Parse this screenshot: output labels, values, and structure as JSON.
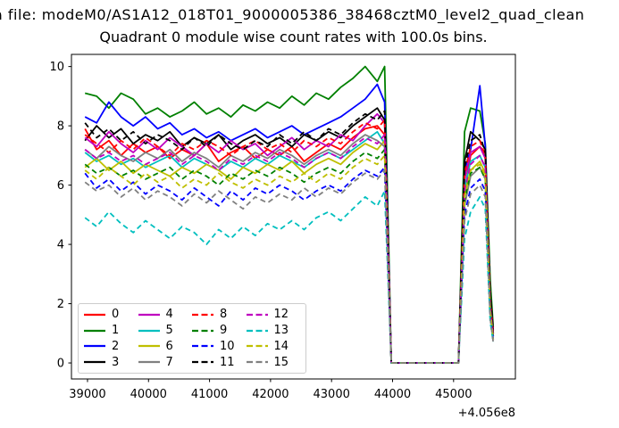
{
  "titles": {
    "line1": "a file: modeM0/AS1A12_018T01_9000005386_38468cztM0_level2_quad_clean",
    "line2": "Quadrant 0 module wise count rates with 100.0s bins."
  },
  "axes": {
    "xticks": [
      39000,
      40000,
      41000,
      42000,
      43000,
      44000,
      45000
    ],
    "yticks": [
      0,
      2,
      4,
      6,
      8,
      10
    ],
    "offset_text": "+4.056e8",
    "xlim": [
      38737,
      46013
    ],
    "ylim": [
      -0.54,
      10.41
    ]
  },
  "chart_data": {
    "type": "line",
    "title": "Quadrant 0 module wise count rates with 100.0s bins.",
    "xlabel": "",
    "ylabel": "",
    "x_offset": "+4.056e8",
    "bin_seconds": 100.0,
    "legend_position": "lower-left",
    "legend_ncol": 4,
    "grid": false,
    "x": [
      38960,
      39150,
      39350,
      39550,
      39750,
      39950,
      40150,
      40350,
      40550,
      40750,
      40950,
      41150,
      41350,
      41550,
      41750,
      41950,
      42150,
      42350,
      42550,
      42750,
      42950,
      43150,
      43350,
      43550,
      43750,
      43870,
      43980,
      44100,
      44300,
      44500,
      44700,
      44900,
      45080,
      45180,
      45280,
      45430,
      45520,
      45600,
      45650
    ],
    "series": [
      {
        "name": "0",
        "color": "#ff0000",
        "dash": false,
        "values": [
          7.9,
          7.2,
          7.5,
          7.0,
          7.4,
          7.1,
          7.3,
          6.9,
          7.2,
          7.0,
          7.4,
          6.8,
          7.1,
          7.3,
          6.9,
          7.2,
          7.0,
          7.3,
          6.8,
          7.1,
          7.4,
          7.2,
          7.6,
          7.9,
          8.0,
          7.7,
          0,
          0,
          0,
          0,
          0,
          0,
          0,
          5.8,
          7.0,
          7.3,
          7.1,
          2.3,
          1.0
        ]
      },
      {
        "name": "1",
        "color": "#008000",
        "dash": false,
        "values": [
          9.1,
          9.0,
          8.6,
          9.1,
          8.9,
          8.4,
          8.6,
          8.3,
          8.5,
          8.8,
          8.4,
          8.6,
          8.3,
          8.7,
          8.5,
          8.8,
          8.6,
          9.0,
          8.7,
          9.1,
          8.9,
          9.3,
          9.6,
          10.0,
          9.5,
          10.0,
          0,
          0,
          0,
          0,
          0,
          0,
          0,
          7.8,
          8.6,
          8.5,
          7.4,
          2.8,
          1.2
        ]
      },
      {
        "name": "2",
        "color": "#0000ff",
        "dash": false,
        "values": [
          8.3,
          8.1,
          8.8,
          8.3,
          8.0,
          8.3,
          7.9,
          8.1,
          7.7,
          7.9,
          7.6,
          7.8,
          7.5,
          7.7,
          7.9,
          7.6,
          7.8,
          8.0,
          7.7,
          7.9,
          8.1,
          8.3,
          8.6,
          8.9,
          9.4,
          8.8,
          0,
          0,
          0,
          0,
          0,
          0,
          0,
          6.5,
          7.2,
          9.35,
          7.3,
          2.1,
          0.9
        ]
      },
      {
        "name": "3",
        "color": "#000000",
        "dash": false,
        "values": [
          7.5,
          8.0,
          7.6,
          7.9,
          7.4,
          7.7,
          7.5,
          7.8,
          7.3,
          7.6,
          7.4,
          7.7,
          7.2,
          7.5,
          7.7,
          7.4,
          7.6,
          7.3,
          7.7,
          7.5,
          7.8,
          7.6,
          8.0,
          8.3,
          8.6,
          8.2,
          0,
          0,
          0,
          0,
          0,
          0,
          0,
          6.8,
          7.8,
          7.5,
          7.2,
          2.4,
          1.1
        ]
      },
      {
        "name": "4",
        "color": "#bf00bf",
        "dash": false,
        "values": [
          7.6,
          7.3,
          7.8,
          7.4,
          7.1,
          7.5,
          7.2,
          7.6,
          7.3,
          7.0,
          7.4,
          7.1,
          7.5,
          7.2,
          7.4,
          7.0,
          7.3,
          7.6,
          7.2,
          7.5,
          7.3,
          7.7,
          7.5,
          8.0,
          8.4,
          8.1,
          0,
          0,
          0,
          0,
          0,
          0,
          0,
          6.2,
          7.1,
          7.3,
          6.9,
          2.0,
          1.0
        ]
      },
      {
        "name": "5",
        "color": "#00bfbf",
        "dash": false,
        "values": [
          7.1,
          6.8,
          7.0,
          6.7,
          6.9,
          6.6,
          6.8,
          7.0,
          6.6,
          6.9,
          6.7,
          6.5,
          6.8,
          6.6,
          6.9,
          6.7,
          7.0,
          6.8,
          6.6,
          6.9,
          7.1,
          6.9,
          7.2,
          7.5,
          7.8,
          7.4,
          0,
          0,
          0,
          0,
          0,
          0,
          0,
          5.9,
          6.8,
          7.0,
          6.6,
          1.9,
          0.9
        ]
      },
      {
        "name": "6",
        "color": "#bfbf00",
        "dash": false,
        "values": [
          6.6,
          6.9,
          6.5,
          6.8,
          6.4,
          6.7,
          6.5,
          6.3,
          6.6,
          6.4,
          6.7,
          6.5,
          6.2,
          6.6,
          6.4,
          6.7,
          6.5,
          6.8,
          6.4,
          6.7,
          6.9,
          6.7,
          7.1,
          7.4,
          7.2,
          7.5,
          0,
          0,
          0,
          0,
          0,
          0,
          0,
          5.7,
          6.5,
          6.8,
          6.4,
          1.8,
          0.9
        ]
      },
      {
        "name": "7",
        "color": "#808080",
        "dash": false,
        "values": [
          7.2,
          6.9,
          7.3,
          7.0,
          6.8,
          7.1,
          6.9,
          7.2,
          6.8,
          7.1,
          6.9,
          6.6,
          7.0,
          6.8,
          7.1,
          6.9,
          7.2,
          7.0,
          6.7,
          7.0,
          7.2,
          7.0,
          7.4,
          7.7,
          7.5,
          7.3,
          0,
          0,
          0,
          0,
          0,
          0,
          0,
          5.3,
          6.3,
          6.6,
          6.2,
          1.7,
          0.9
        ]
      },
      {
        "name": "8",
        "color": "#ff0000",
        "dash": true,
        "values": [
          7.7,
          7.4,
          7.1,
          7.5,
          7.2,
          7.6,
          7.3,
          7.0,
          7.4,
          7.2,
          7.5,
          7.3,
          7.0,
          7.3,
          7.5,
          7.2,
          7.4,
          7.1,
          7.5,
          7.3,
          7.6,
          7.4,
          7.8,
          8.1,
          7.9,
          8.2,
          0,
          0,
          0,
          0,
          0,
          0,
          0,
          6.4,
          7.3,
          7.5,
          7.0,
          2.1,
          1.0
        ]
      },
      {
        "name": "9",
        "color": "#008000",
        "dash": true,
        "values": [
          6.7,
          6.4,
          6.6,
          6.3,
          6.5,
          6.2,
          6.4,
          6.6,
          6.2,
          6.5,
          6.3,
          6.0,
          6.4,
          6.2,
          6.5,
          6.3,
          6.6,
          6.4,
          6.1,
          6.4,
          6.6,
          6.4,
          6.8,
          7.1,
          6.9,
          7.2,
          0,
          0,
          0,
          0,
          0,
          0,
          0,
          5.5,
          6.4,
          6.6,
          6.2,
          1.8,
          0.8
        ]
      },
      {
        "name": "10",
        "color": "#0000ff",
        "dash": true,
        "values": [
          6.4,
          5.9,
          6.2,
          5.8,
          6.1,
          5.7,
          6.0,
          5.8,
          5.5,
          5.9,
          5.6,
          5.3,
          5.8,
          5.5,
          5.9,
          5.7,
          6.0,
          5.8,
          5.5,
          5.8,
          6.0,
          5.8,
          6.2,
          6.5,
          6.3,
          6.6,
          0,
          0,
          0,
          0,
          0,
          0,
          0,
          5.0,
          5.9,
          6.2,
          5.8,
          1.6,
          0.8
        ]
      },
      {
        "name": "11",
        "color": "#000000",
        "dash": true,
        "values": [
          8.1,
          7.6,
          7.9,
          7.5,
          7.8,
          7.4,
          7.7,
          7.5,
          7.2,
          7.6,
          7.3,
          7.7,
          7.4,
          7.2,
          7.5,
          7.3,
          7.7,
          7.4,
          7.8,
          7.5,
          7.9,
          7.7,
          8.1,
          8.4,
          8.2,
          8.5,
          0,
          0,
          0,
          0,
          0,
          0,
          0,
          6.6,
          7.5,
          7.7,
          7.1,
          2.2,
          1.0
        ]
      },
      {
        "name": "12",
        "color": "#bf00bf",
        "dash": true,
        "values": [
          7.2,
          6.9,
          7.1,
          6.8,
          7.0,
          6.7,
          6.9,
          7.1,
          6.7,
          7.0,
          6.8,
          6.5,
          6.9,
          6.7,
          7.0,
          6.8,
          7.1,
          6.9,
          6.6,
          6.9,
          7.1,
          6.9,
          7.3,
          7.6,
          7.4,
          7.7,
          0,
          0,
          0,
          0,
          0,
          0,
          0,
          5.8,
          6.7,
          7.0,
          6.6,
          1.9,
          0.9
        ]
      },
      {
        "name": "13",
        "color": "#00bfbf",
        "dash": true,
        "values": [
          4.9,
          4.6,
          5.1,
          4.7,
          4.4,
          4.8,
          4.5,
          4.2,
          4.6,
          4.4,
          4.0,
          4.5,
          4.2,
          4.6,
          4.3,
          4.7,
          4.5,
          4.8,
          4.5,
          4.9,
          5.1,
          4.8,
          5.2,
          5.6,
          5.3,
          5.8,
          0,
          0,
          0,
          0,
          0,
          0,
          0,
          4.2,
          5.1,
          5.6,
          5.2,
          1.4,
          0.7
        ]
      },
      {
        "name": "14",
        "color": "#bfbf00",
        "dash": true,
        "values": [
          6.5,
          6.2,
          6.6,
          6.3,
          6.0,
          6.4,
          6.1,
          6.3,
          5.9,
          6.2,
          6.0,
          6.4,
          6.1,
          5.9,
          6.2,
          6.0,
          6.3,
          6.1,
          6.4,
          6.1,
          6.4,
          6.2,
          6.6,
          6.9,
          6.7,
          7.0,
          0,
          0,
          0,
          0,
          0,
          0,
          0,
          5.6,
          6.5,
          6.7,
          6.3,
          1.8,
          0.8
        ]
      },
      {
        "name": "15",
        "color": "#808080",
        "dash": true,
        "values": [
          6.1,
          5.8,
          6.0,
          5.6,
          5.9,
          5.5,
          5.8,
          5.6,
          5.3,
          5.7,
          5.4,
          5.8,
          5.5,
          5.2,
          5.6,
          5.4,
          5.7,
          5.5,
          5.9,
          5.6,
          5.9,
          5.7,
          6.1,
          6.4,
          6.2,
          6.5,
          0,
          0,
          0,
          0,
          0,
          0,
          0,
          4.8,
          5.7,
          6.0,
          5.6,
          1.5,
          0.7
        ]
      }
    ]
  }
}
